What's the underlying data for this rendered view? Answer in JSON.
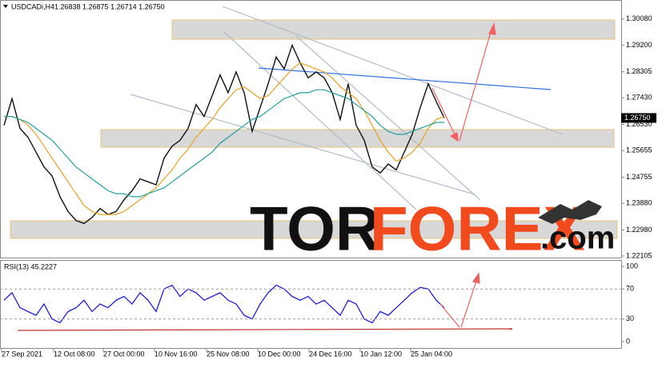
{
  "chart_data": [
    {
      "type": "line",
      "title": "USDCADi,H4",
      "subtitle": "1.26838 1.26875 1.26714 1.26750",
      "xlim": [
        -0.5,
        77.1
      ],
      "ylim": [
        1.2205,
        1.3072
      ],
      "yticks": [
        {
          "value": 1.3008,
          "label": "1.30080"
        },
        {
          "value": 1.292,
          "label": "1.29200"
        },
        {
          "value": 1.28305,
          "label": "1.28305"
        },
        {
          "value": 1.2743,
          "label": "1.27430"
        },
        {
          "value": 1.2653,
          "label": "1.26530"
        },
        {
          "value": 1.25655,
          "label": "1.25655"
        },
        {
          "value": 1.24755,
          "label": "1.24755"
        },
        {
          "value": 1.2388,
          "label": "1.23880"
        },
        {
          "value": 1.2298,
          "label": "1.22980"
        },
        {
          "value": 1.22105,
          "label": "1.22105"
        }
      ],
      "last_price": {
        "value": 1.2675,
        "label": "1.26750"
      },
      "series": [
        {
          "color": "#111111",
          "values": [
            1.265,
            1.274,
            1.264,
            1.261,
            1.256,
            1.251,
            1.248,
            1.241,
            1.236,
            1.233,
            1.232,
            1.234,
            1.237,
            1.235,
            1.236,
            1.24,
            1.243,
            1.247,
            1.246,
            1.245,
            1.254,
            1.258,
            1.26,
            1.264,
            1.272,
            1.268,
            1.275,
            1.282,
            1.276,
            1.283,
            1.276,
            1.263,
            1.271,
            1.279,
            1.288,
            1.284,
            1.292,
            1.286,
            1.281,
            1.283,
            1.281,
            1.276,
            1.267,
            1.279,
            1.265,
            1.26,
            1.251,
            1.249,
            1.252,
            1.25,
            1.256,
            1.262,
            1.271,
            1.279,
            1.273,
            1.2675
          ]
        },
        {
          "color": "#e8a020",
          "values": [
            1.268,
            1.268,
            1.267,
            1.265,
            1.262,
            1.258,
            1.254,
            1.25,
            1.246,
            1.242,
            1.238,
            1.236,
            1.235,
            1.235,
            1.235,
            1.236,
            1.238,
            1.24,
            1.242,
            1.244,
            1.247,
            1.25,
            1.254,
            1.257,
            1.261,
            1.264,
            1.267,
            1.271,
            1.274,
            1.277,
            1.278,
            1.276,
            1.274,
            1.275,
            1.278,
            1.281,
            1.284,
            1.286,
            1.285,
            1.284,
            1.283,
            1.281,
            1.278,
            1.276,
            1.274,
            1.27,
            1.265,
            1.26,
            1.256,
            1.253,
            1.254,
            1.256,
            1.259,
            1.264,
            1.267,
            1.268
          ]
        },
        {
          "color": "#20a0a0",
          "values": [
            1.268,
            1.268,
            1.267,
            1.266,
            1.264,
            1.262,
            1.26,
            1.257,
            1.254,
            1.251,
            1.249,
            1.247,
            1.245,
            1.243,
            1.242,
            1.242,
            1.241,
            1.241,
            1.242,
            1.243,
            1.244,
            1.246,
            1.248,
            1.25,
            1.252,
            1.254,
            1.256,
            1.259,
            1.261,
            1.263,
            1.265,
            1.267,
            1.268,
            1.27,
            1.272,
            1.274,
            1.275,
            1.276,
            1.276,
            1.277,
            1.277,
            1.276,
            1.275,
            1.274,
            1.272,
            1.27,
            1.268,
            1.265,
            1.263,
            1.262,
            1.262,
            1.263,
            1.264,
            1.265,
            1.266,
            1.266
          ]
        }
      ]
    },
    {
      "type": "line",
      "title": "RSI(13) 45.2227",
      "xlim": [
        -0.5,
        77.1
      ],
      "ylim": [
        0,
        100
      ],
      "yticks": [
        100,
        70,
        30,
        0
      ],
      "grid": [
        70,
        30
      ],
      "xticks": [
        {
          "value": -0.3,
          "label": "27 Sep 2021"
        },
        {
          "value": 6.2,
          "label": "12 Oct 08:00"
        },
        {
          "value": 12.4,
          "label": "27 Oct 00:00"
        },
        {
          "value": 18.8,
          "label": "10 Nov 16:00"
        },
        {
          "value": 25.3,
          "label": "25 Nov 08:00"
        },
        {
          "value": 31.7,
          "label": "10 Dec 00:00"
        },
        {
          "value": 38.1,
          "label": "24 Dec 16:00"
        },
        {
          "value": 44.5,
          "label": "10 Jan 12:00"
        },
        {
          "value": 50.8,
          "label": "25 Jan 04:00"
        }
      ],
      "series": [
        {
          "color": "#1010e0",
          "values": [
            55,
            65,
            45,
            40,
            35,
            50,
            30,
            25,
            40,
            45,
            55,
            40,
            50,
            45,
            55,
            60,
            50,
            65,
            55,
            40,
            70,
            75,
            60,
            70,
            65,
            55,
            60,
            65,
            55,
            50,
            35,
            30,
            50,
            65,
            75,
            70,
            60,
            55,
            60,
            50,
            55,
            45,
            35,
            55,
            50,
            30,
            25,
            40,
            35,
            45,
            55,
            65,
            72,
            70,
            55,
            45
          ]
        }
      ]
    }
  ],
  "watermark": {
    "parts": [
      "TOR",
      "FOREX",
      ".com"
    ]
  }
}
